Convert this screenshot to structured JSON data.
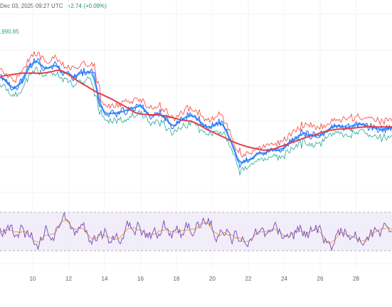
{
  "header": {
    "timestamp": "Dec 03, 2025 09:27 UTC",
    "change": "+2.74 (+0.09%)"
  },
  "price_label": ",990.85",
  "colors": {
    "price_line": "#2962ff",
    "fast_band": "#42a5f5",
    "upper_band": "#f44336",
    "lower_band": "#26a69a",
    "sma": "#e0404a",
    "rsi_line": "#7e57c2",
    "rsi_signal": "#f2a33a",
    "rsi_band_fill": "#ede7f6",
    "grid": "#f0f3fa",
    "axis_text": "#5d606b"
  },
  "chart_data": [
    {
      "type": "line",
      "panel": "price",
      "x_ticks": [
        "10",
        "12",
        "14",
        "16",
        "18",
        "20",
        "22",
        "24",
        "26",
        "28"
      ],
      "grid": true,
      "series_sample_count": 300,
      "lines": [
        "price",
        "fast-ma",
        "upper-band",
        "lower-band",
        "slow-ma"
      ]
    },
    {
      "type": "line",
      "panel": "oscillator",
      "x_ticks": [
        "10",
        "12",
        "14",
        "16",
        "18",
        "20",
        "22",
        "24",
        "26",
        "28"
      ],
      "band_lines": 2,
      "lines": [
        "oscillator",
        "signal"
      ],
      "grid": true
    }
  ]
}
